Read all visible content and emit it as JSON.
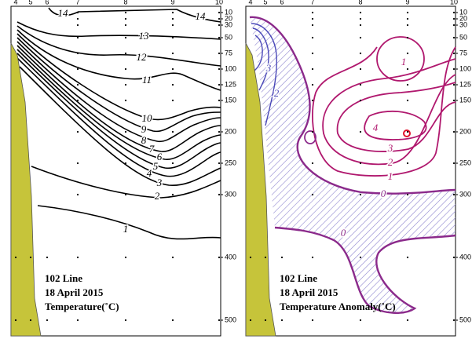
{
  "chart_data": [
    {
      "type": "contour",
      "categories": [
        "4",
        "5",
        "6",
        "7",
        "8",
        "9",
        "10"
      ],
      "ylim": [
        0,
        525
      ],
      "yticks": [
        10,
        20,
        30,
        50,
        75,
        100,
        125,
        150,
        200,
        250,
        300,
        400,
        500
      ],
      "contour_levels": [
        14,
        14,
        13,
        12,
        11,
        10,
        9,
        8,
        7,
        6,
        5,
        4,
        3,
        2,
        1
      ],
      "annotations": [
        "102 Line",
        "18 April 2015",
        "Temperature(˚C)"
      ]
    },
    {
      "type": "contour",
      "categories": [
        "4",
        "5",
        "6",
        "7",
        "8",
        "9",
        "10"
      ],
      "ylim": [
        0,
        525
      ],
      "yticks": [
        10,
        20,
        30,
        50,
        75,
        100,
        125,
        150,
        200,
        250,
        300,
        400,
        500
      ],
      "contour_levels": [
        1,
        4,
        3,
        2,
        1,
        0,
        0,
        3,
        2
      ],
      "annotations": [
        "102 Line",
        "18 April 2015",
        "Temperature Anomaly(˚C)"
      ]
    }
  ]
}
